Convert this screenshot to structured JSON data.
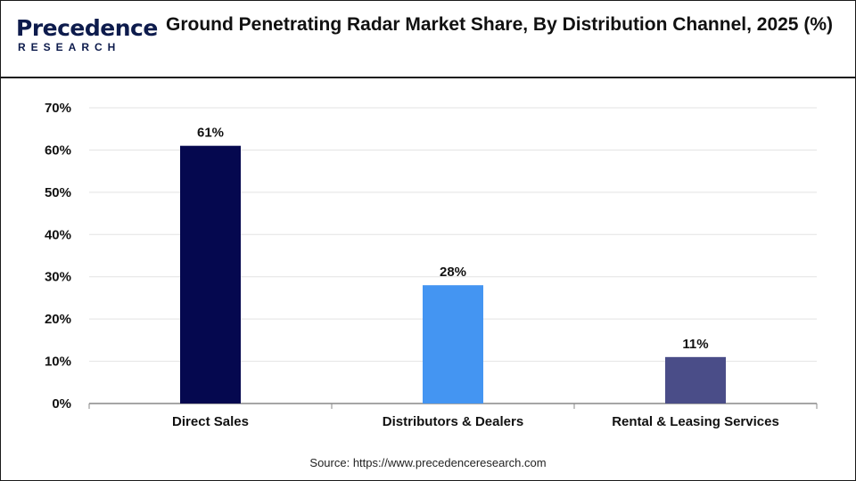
{
  "brand": {
    "name": "Precedence",
    "sub": "RESEARCH"
  },
  "source": "Source: https://www.precedenceresearch.com",
  "chart_data": {
    "type": "bar",
    "title": "Ground Penetrating Radar Market Share, By Distribution Channel, 2025 (%)",
    "categories": [
      "Direct Sales",
      "Distributors & Dealers",
      "Rental & Leasing Services"
    ],
    "values": [
      61,
      28,
      11
    ],
    "data_labels": [
      "61%",
      "28%",
      "11%"
    ],
    "bar_colors": [
      "#05084f",
      "#4495f2",
      "#4a4d88"
    ],
    "ylim": [
      0,
      70
    ],
    "yticks": [
      0,
      10,
      20,
      30,
      40,
      50,
      60,
      70
    ],
    "ytick_labels": [
      "0%",
      "10%",
      "20%",
      "30%",
      "40%",
      "50%",
      "60%",
      "70%"
    ],
    "grid": true,
    "legend": "none"
  }
}
